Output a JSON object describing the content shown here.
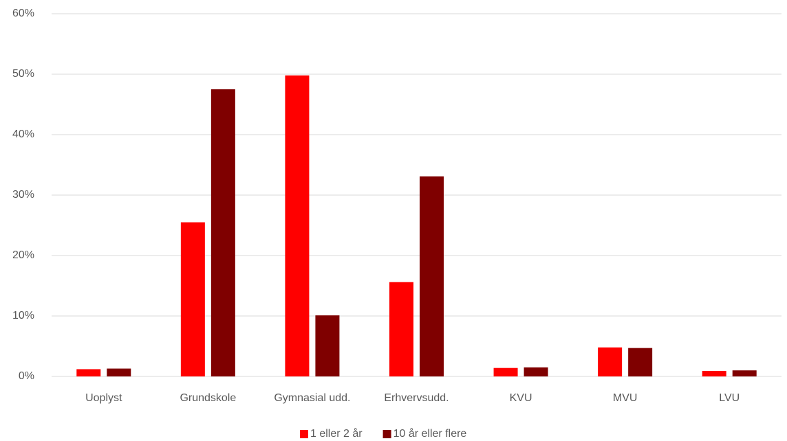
{
  "chart_data": {
    "type": "bar",
    "categories": [
      "Uoplyst",
      "Grundskole",
      "Gymnasial udd.",
      "Erhvervsudd.",
      "KVU",
      "MVU",
      "LVU"
    ],
    "series": [
      {
        "name": "1 eller 2 år",
        "color": "#ff0000",
        "values": [
          1.2,
          25.5,
          49.8,
          15.6,
          1.4,
          4.8,
          0.9
        ]
      },
      {
        "name": "10 år eller flere",
        "color": "#7f0000",
        "values": [
          1.3,
          47.5,
          10.1,
          33.1,
          1.5,
          4.7,
          1.0
        ]
      }
    ],
    "ylim": [
      0,
      60
    ],
    "yticks": [
      {
        "value": 0,
        "label": "0%"
      },
      {
        "value": 10,
        "label": "10%"
      },
      {
        "value": 20,
        "label": "20%"
      },
      {
        "value": 30,
        "label": "30%"
      },
      {
        "value": 40,
        "label": "40%"
      },
      {
        "value": 50,
        "label": "50%"
      },
      {
        "value": 60,
        "label": "60%"
      }
    ],
    "grid": true,
    "legend": "bottom"
  }
}
